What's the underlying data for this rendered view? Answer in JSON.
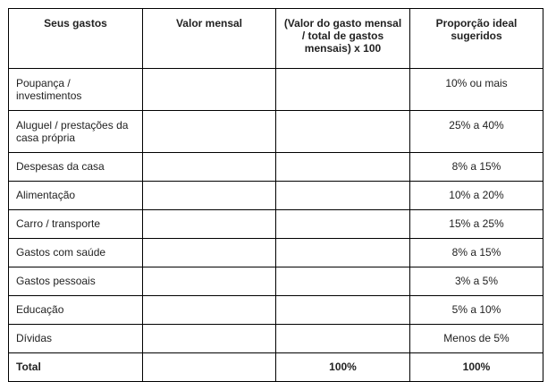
{
  "table": {
    "headers": [
      "Seus gastos",
      "Valor mensal",
      "(Valor do gasto mensal / total de gastos mensais) x 100",
      "Proporção ideal sugeridos"
    ],
    "rows": [
      {
        "category": "Poupança / investimentos",
        "monthly_value": "",
        "percent": "",
        "ideal": "10% ou mais"
      },
      {
        "category": "Aluguel / prestações da casa própria",
        "monthly_value": "",
        "percent": "",
        "ideal": "25% a 40%"
      },
      {
        "category": "Despesas da casa",
        "monthly_value": "",
        "percent": "",
        "ideal": "8% a 15%"
      },
      {
        "category": "Alimentação",
        "monthly_value": "",
        "percent": "",
        "ideal": "10% a 20%"
      },
      {
        "category": "Carro / transporte",
        "monthly_value": "",
        "percent": "",
        "ideal": "15% a 25%"
      },
      {
        "category": "Gastos com saúde",
        "monthly_value": "",
        "percent": "",
        "ideal": "8% a 15%"
      },
      {
        "category": "Gastos pessoais",
        "monthly_value": "",
        "percent": "",
        "ideal": "3% a 5%"
      },
      {
        "category": "Educação",
        "monthly_value": "",
        "percent": "",
        "ideal": "5% a 10%"
      },
      {
        "category": "Dívidas",
        "monthly_value": "",
        "percent": "",
        "ideal": "Menos de 5%"
      }
    ],
    "total": {
      "label": "Total",
      "monthly_value": "",
      "percent": "100%",
      "ideal": "100%"
    }
  }
}
